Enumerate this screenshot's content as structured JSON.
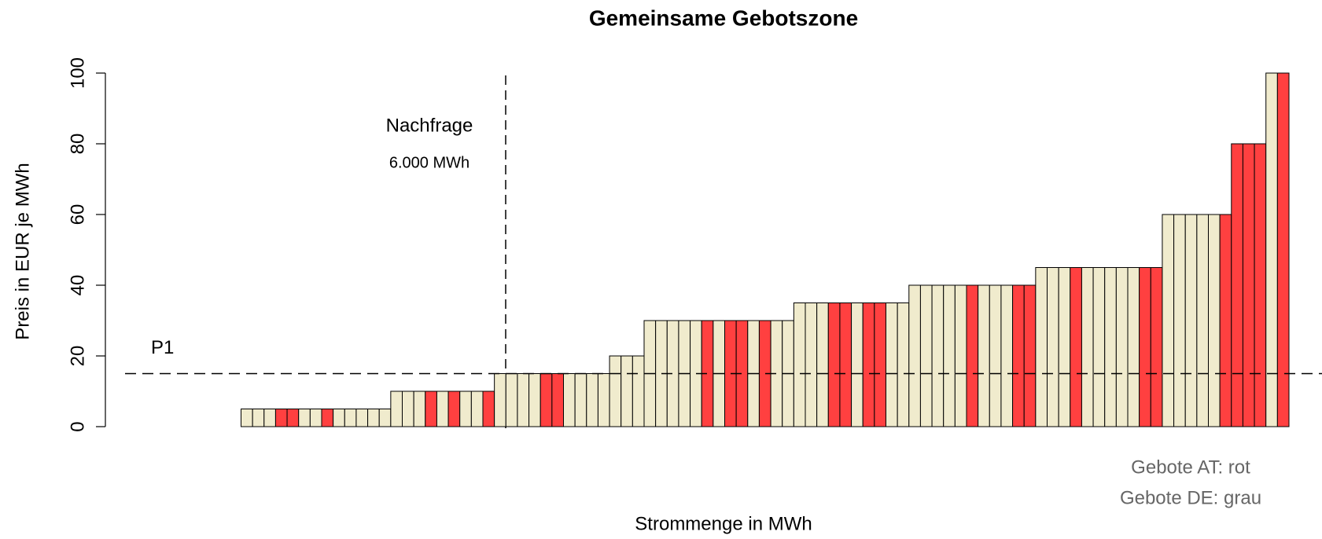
{
  "chart_data": {
    "type": "bar",
    "title": "Gemeinsame Gebotszone",
    "xlabel": "Strommenge in MWh",
    "ylabel": "Preis in EUR je MWh",
    "values": [
      0,
      0,
      0,
      0,
      0,
      0,
      0,
      5,
      5,
      5,
      5,
      5,
      5,
      5,
      5,
      5,
      5,
      5,
      5,
      5,
      10,
      10,
      10,
      10,
      10,
      10,
      10,
      10,
      10,
      15,
      15,
      15,
      15,
      15,
      15,
      15,
      15,
      15,
      15,
      20,
      20,
      20,
      30,
      30,
      30,
      30,
      30,
      30,
      30,
      30,
      30,
      30,
      30,
      30,
      30,
      35,
      35,
      35,
      35,
      35,
      35,
      35,
      35,
      35,
      35,
      40,
      40,
      40,
      40,
      40,
      40,
      40,
      40,
      40,
      40,
      40,
      45,
      45,
      45,
      45,
      45,
      45,
      45,
      45,
      45,
      45,
      45,
      60,
      60,
      60,
      60,
      60,
      60,
      80,
      80,
      80,
      100,
      100
    ],
    "colors": [
      "#f0ebcd",
      "#f0ebcd",
      "#f0ebcd",
      "#f0ebcd",
      "#f0ebcd",
      "#f0ebcd",
      "#f0ebcd",
      "#f0ebcd",
      "#f0ebcd",
      "#f0ebcd",
      "#ff4040",
      "#ff4040",
      "#f0ebcd",
      "#f0ebcd",
      "#ff4040",
      "#f0ebcd",
      "#f0ebcd",
      "#f0ebcd",
      "#f0ebcd",
      "#f0ebcd",
      "#f0ebcd",
      "#f0ebcd",
      "#f0ebcd",
      "#ff4040",
      "#f0ebcd",
      "#ff4040",
      "#f0ebcd",
      "#f0ebcd",
      "#ff4040",
      "#f0ebcd",
      "#f0ebcd",
      "#f0ebcd",
      "#f0ebcd",
      "#ff4040",
      "#ff4040",
      "#f0ebcd",
      "#f0ebcd",
      "#f0ebcd",
      "#f0ebcd",
      "#f0ebcd",
      "#f0ebcd",
      "#f0ebcd",
      "#f0ebcd",
      "#f0ebcd",
      "#f0ebcd",
      "#f0ebcd",
      "#f0ebcd",
      "#ff4040",
      "#f0ebcd",
      "#ff4040",
      "#ff4040",
      "#f0ebcd",
      "#ff4040",
      "#f0ebcd",
      "#f0ebcd",
      "#f0ebcd",
      "#f0ebcd",
      "#f0ebcd",
      "#ff4040",
      "#ff4040",
      "#f0ebcd",
      "#ff4040",
      "#ff4040",
      "#f0ebcd",
      "#f0ebcd",
      "#f0ebcd",
      "#f0ebcd",
      "#f0ebcd",
      "#f0ebcd",
      "#f0ebcd",
      "#ff4040",
      "#f0ebcd",
      "#f0ebcd",
      "#f0ebcd",
      "#ff4040",
      "#ff4040",
      "#f0ebcd",
      "#f0ebcd",
      "#f0ebcd",
      "#ff4040",
      "#f0ebcd",
      "#f0ebcd",
      "#f0ebcd",
      "#f0ebcd",
      "#f0ebcd",
      "#ff4040",
      "#ff4040",
      "#f0ebcd",
      "#f0ebcd",
      "#f0ebcd",
      "#f0ebcd",
      "#f0ebcd",
      "#ff4040",
      "#ff4040",
      "#ff4040",
      "#ff4040",
      "#f0ebcd",
      "#ff4040"
    ],
    "ylim": [
      0,
      100
    ],
    "yticks": [
      0,
      20,
      40,
      60,
      80,
      100
    ],
    "price_line": {
      "label": "P1",
      "value": 15
    },
    "demand": {
      "label": "Nachfrage",
      "amount": "6.000 MWh"
    },
    "notes": [
      "Gebote AT: rot",
      "Gebote DE: grau"
    ]
  }
}
